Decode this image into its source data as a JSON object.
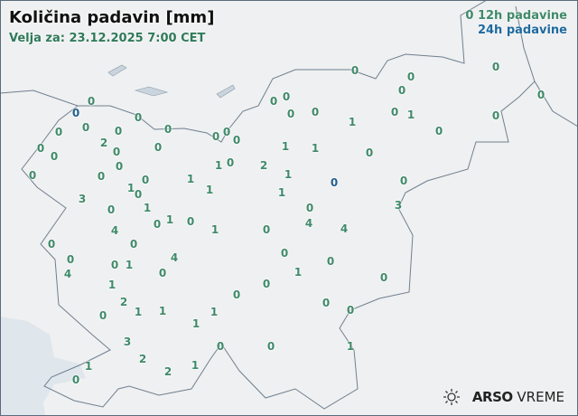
{
  "header": {
    "title": "Količina padavin [mm]",
    "valid": "Velja za: 23.12.2025 7:00 CET"
  },
  "legend": {
    "sample": "0",
    "h12": "12h padavine",
    "h24": "24h padavine",
    "color_12h": "#3f8a6a",
    "color_24h": "#1f6a9f"
  },
  "logo": {
    "brand": "ARSO",
    "product": "VREME",
    "icon": "sun-icon"
  },
  "stations_12h_values": [
    "0",
    "0",
    "0",
    "0",
    "0",
    "0",
    "0",
    "0",
    "0",
    "2",
    "0",
    "0",
    "0",
    "0",
    "0",
    "0",
    "0",
    "1",
    "0",
    "0",
    "1",
    "0",
    "0",
    "0",
    "0",
    "0",
    "0",
    "0",
    "0",
    "0",
    "1",
    "0",
    "1",
    "1",
    "2",
    "1",
    "0",
    "1",
    "1",
    "1",
    "0",
    "0",
    "0",
    "0",
    "1",
    "1",
    "3",
    "3",
    "0",
    "0",
    "0",
    "1",
    "0",
    "1",
    "0",
    "4",
    "4",
    "4",
    "0",
    "0",
    "0",
    "4",
    "0",
    "1",
    "0",
    "0",
    "4",
    "0",
    "1",
    "1",
    "0",
    "0",
    "2",
    "0",
    "1",
    "1",
    "0",
    "0",
    "0",
    "1",
    "1",
    "3",
    "0",
    "0",
    "1",
    "2",
    "2",
    "1",
    "1",
    "0"
  ],
  "stations_24h_values": [
    "0",
    "0"
  ],
  "colors": {
    "sea": "#dfe6ec",
    "land": "#eff0f1",
    "border": "#6f7f8f"
  }
}
